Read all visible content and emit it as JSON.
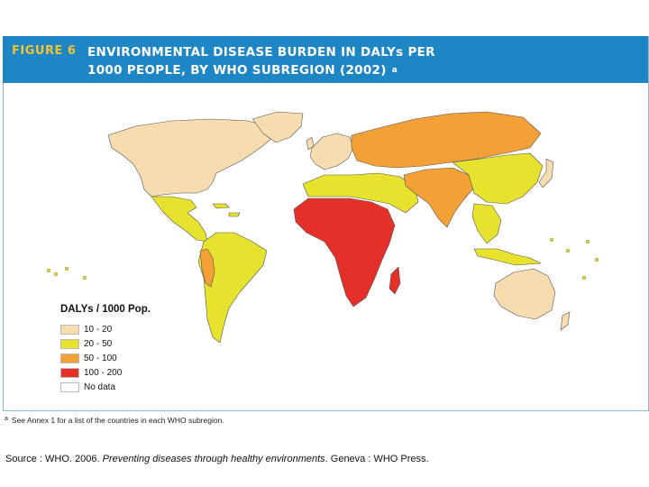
{
  "figure": {
    "label": "FIGURE 6",
    "title_line1": "ENVIRONMENTAL DISEASE BURDEN IN DALYs PER",
    "title_line2": "1000 PEOPLE, BY WHO SUBREGION (2002)",
    "title_marker": "a"
  },
  "colors": {
    "header_bg": "#1f86c6",
    "label_color": "#f2c230",
    "ocean": "#ffffff",
    "border": "#555555"
  },
  "legend": {
    "title": "DALYs / 1000 Pop.",
    "items": [
      {
        "label": "10 - 20",
        "color": "#f7dcb0"
      },
      {
        "label": "20 - 50",
        "color": "#e6e22e"
      },
      {
        "label": "50 - 100",
        "color": "#f3a037"
      },
      {
        "label": "100 - 200",
        "color": "#e5302a"
      },
      {
        "label": "No data",
        "color": "#ffffff"
      }
    ]
  },
  "regions": [
    {
      "name": "north-america",
      "category": "10 - 20",
      "color": "#f7dcb0"
    },
    {
      "name": "greenland",
      "category": "10 - 20",
      "color": "#f7dcb0"
    },
    {
      "name": "central-america",
      "category": "20 - 50",
      "color": "#e6e22e"
    },
    {
      "name": "south-america",
      "category": "20 - 50",
      "color": "#e6e22e"
    },
    {
      "name": "andean-south-america",
      "category": "50 - 100",
      "color": "#f3a037"
    },
    {
      "name": "western-europe",
      "category": "10 - 20",
      "color": "#f7dcb0"
    },
    {
      "name": "eastern-europe-russia",
      "category": "50 - 100",
      "color": "#f3a037"
    },
    {
      "name": "north-africa-middle-east",
      "category": "20 - 50",
      "color": "#e6e22e"
    },
    {
      "name": "sub-saharan-africa",
      "category": "100 - 200",
      "color": "#e5302a"
    },
    {
      "name": "south-asia",
      "category": "50 - 100",
      "color": "#f3a037"
    },
    {
      "name": "china-east-asia",
      "category": "20 - 50",
      "color": "#e6e22e"
    },
    {
      "name": "southeast-asia",
      "category": "20 - 50",
      "color": "#e6e22e"
    },
    {
      "name": "japan",
      "category": "10 - 20",
      "color": "#f7dcb0"
    },
    {
      "name": "australia-nz",
      "category": "10 - 20",
      "color": "#f7dcb0"
    }
  ],
  "footnote": {
    "marker": "a",
    "text": "See Annex 1 for a list of the countries in each WHO subregion."
  },
  "source": {
    "prefix": "Source : WHO. 2006. ",
    "title": "Preventing diseases through healthy environments",
    "suffix": ". Geneva : WHO Press."
  }
}
